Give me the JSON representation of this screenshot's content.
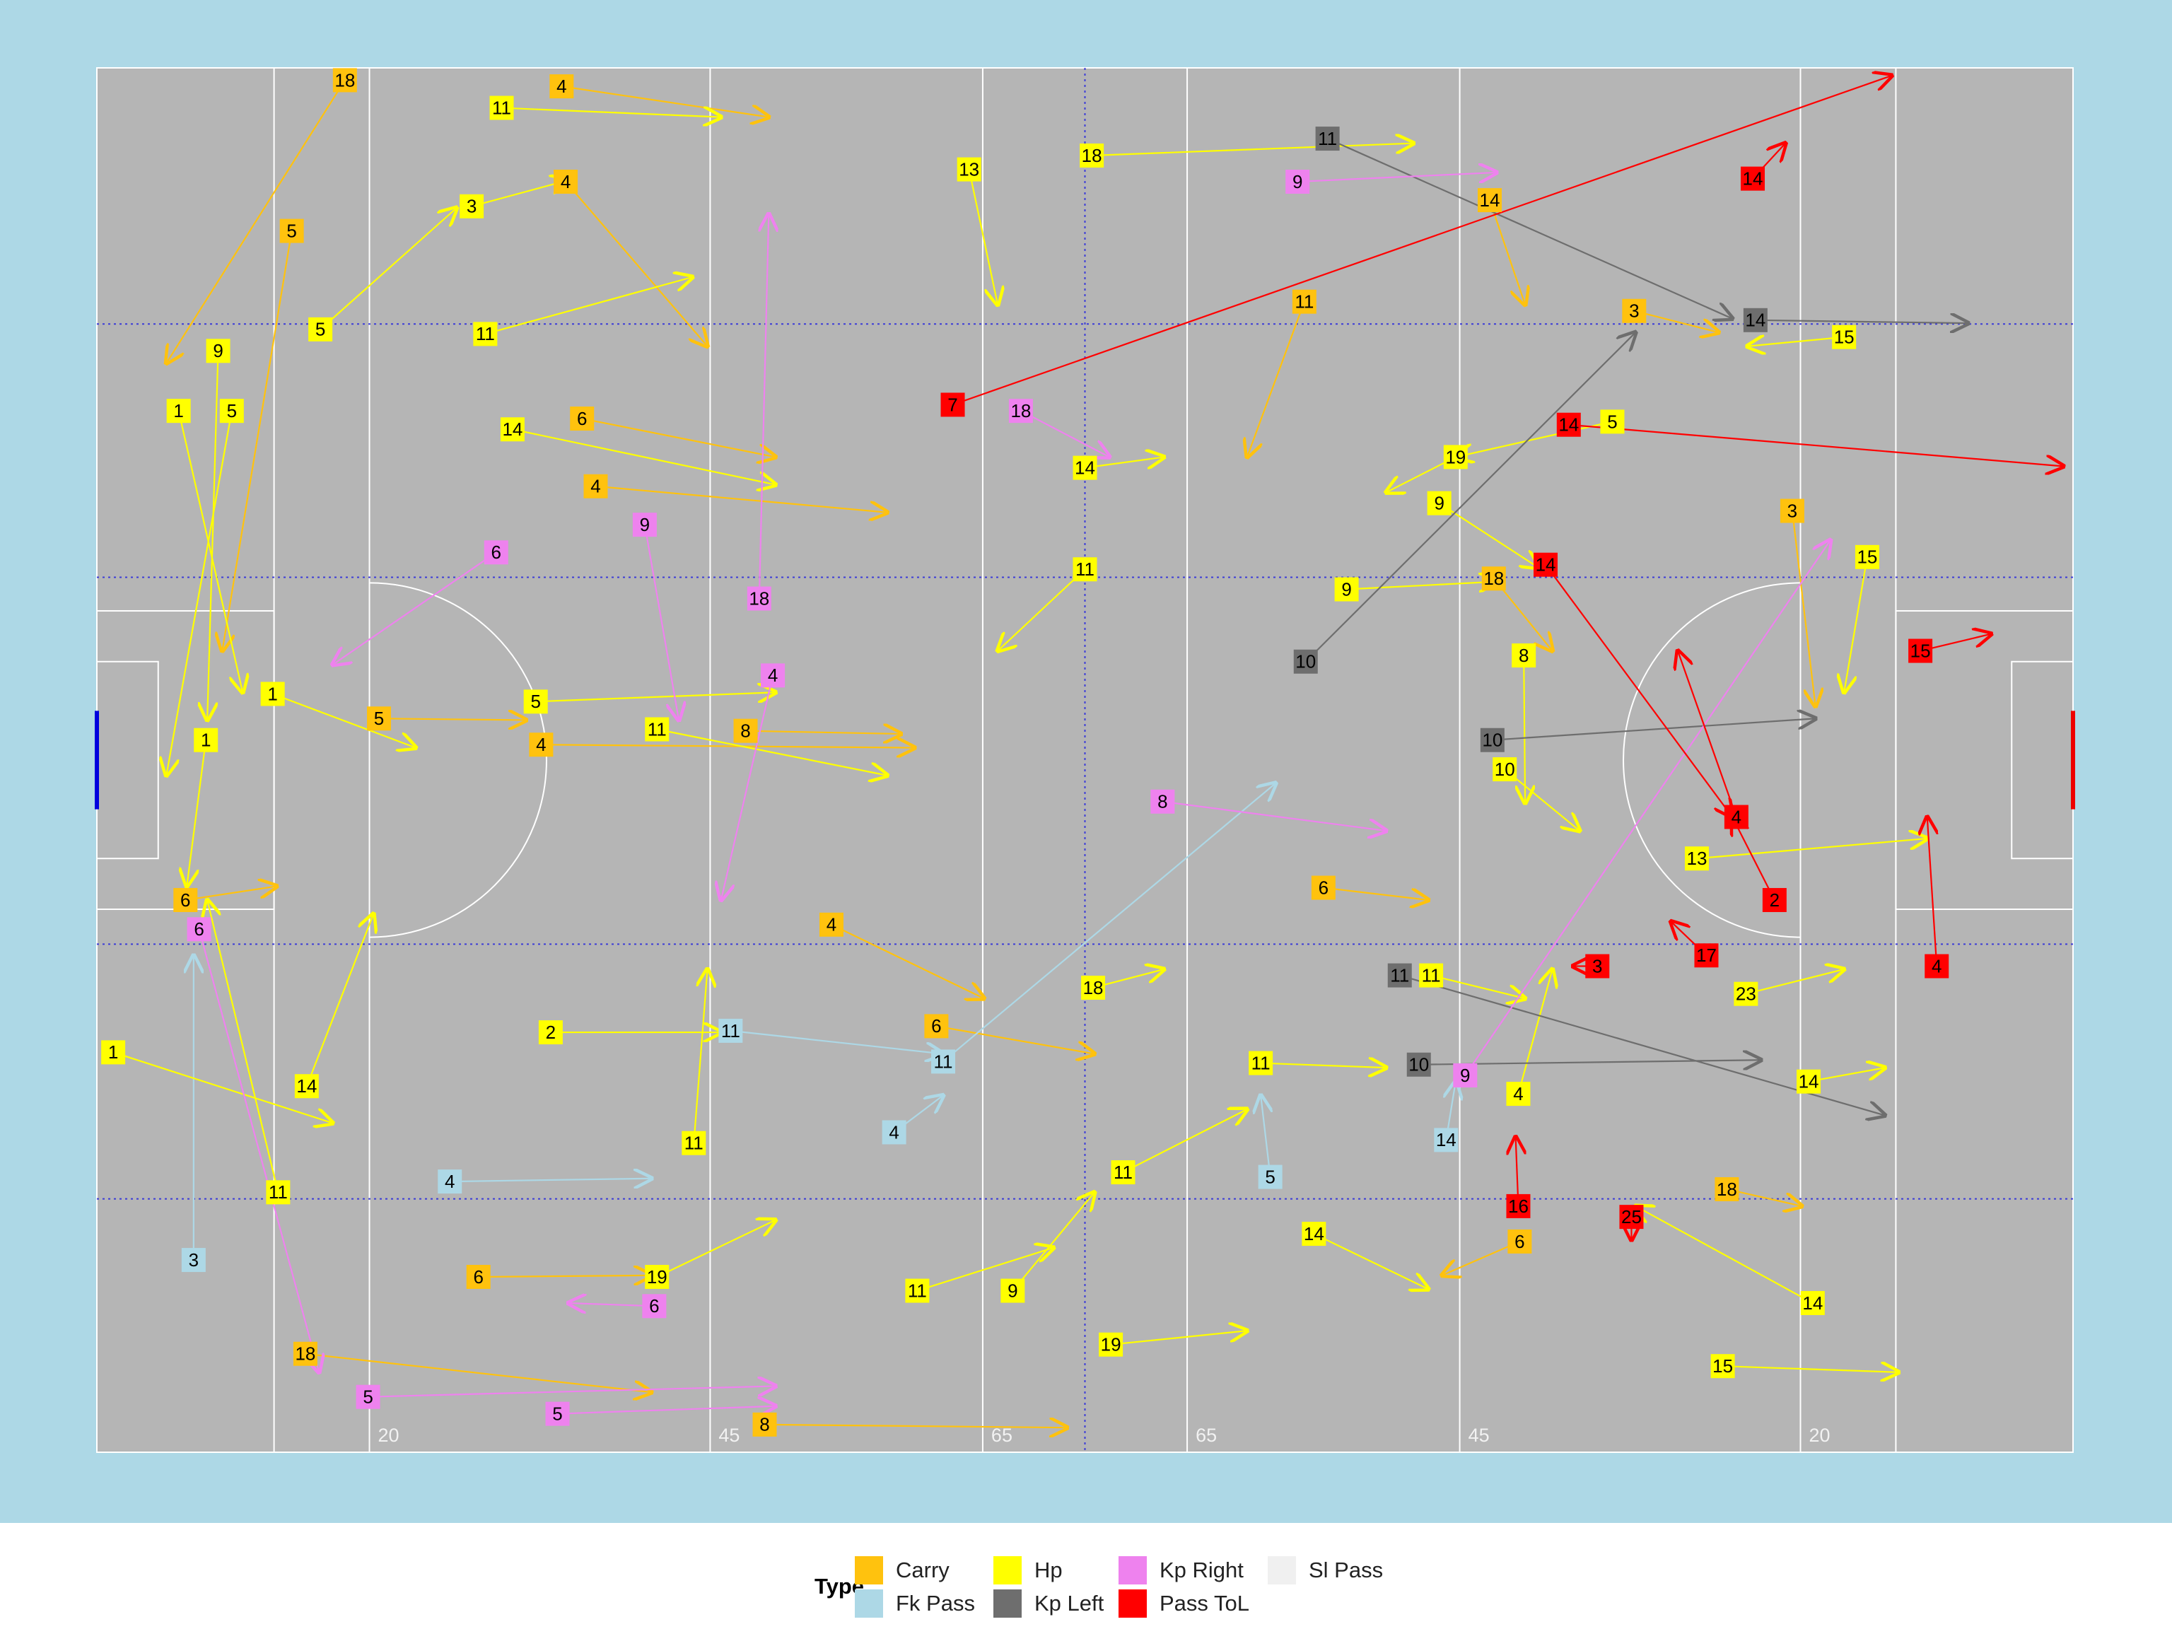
{
  "chart_data": {
    "type": "pitch_arrows",
    "xlim": [
      0,
      145
    ],
    "ylim": [
      0,
      90
    ],
    "xticks": [
      20,
      45,
      65,
      {
        "value": 80,
        "label": "65"
      },
      {
        "value": 100,
        "label": "45"
      },
      {
        "value": 125,
        "label": "20"
      }
    ],
    "legend": "bottom",
    "legend_title": "Type",
    "series": [
      {
        "name": "Carry",
        "color": "#ffc20e",
        "labels": [
          18,
          4,
          4,
          5,
          6,
          4,
          5,
          4,
          8,
          4,
          6,
          6,
          18,
          3,
          14,
          11,
          6,
          8,
          6,
          18,
          3,
          18,
          6
        ],
        "x": [
          18.2,
          34.1,
          34.4,
          14.3,
          35.6,
          36.6,
          20.7,
          32.6,
          47.6,
          53.9,
          61.6,
          90,
          102.5,
          112.8,
          102.2,
          88.6,
          104.4,
          49,
          28,
          15.3,
          124.4,
          119.6,
          6.5
        ],
        "y": [
          0.8,
          1.2,
          7.4,
          10.6,
          22.8,
          27.2,
          42.3,
          44,
          43.1,
          55.7,
          62.3,
          53.3,
          33.2,
          15.8,
          8.6,
          15.2,
          76.3,
          88.2,
          78.6,
          83.6,
          28.8,
          72.9,
          54.1
        ],
        "x_end": [
          5.1,
          49.3,
          44.8,
          9.2,
          49.8,
          58,
          31.5,
          60,
          59,
          65.1,
          73.2,
          97.7,
          106.8,
          119,
          104.8,
          84.4,
          98.7,
          71.2,
          40.7,
          40.7,
          126.1,
          125.1,
          13.2
        ],
        "y_end": [
          19.2,
          3.2,
          18.1,
          37.9,
          25.3,
          28.9,
          42.4,
          44.2,
          43.3,
          60.5,
          64.1,
          54.1,
          37.9,
          17.2,
          15.4,
          25.3,
          78.5,
          88.4,
          78.5,
          86.1,
          41.5,
          74,
          53.2
        ]
      },
      {
        "name": "Fk Pass",
        "color": "#add8e6",
        "labels": [
          11,
          11,
          4,
          3,
          14,
          4,
          5
        ],
        "x": [
          46.5,
          62.1,
          25.9,
          7.1,
          99,
          58.5,
          86.1
        ],
        "y": [
          62.6,
          64.6,
          72.4,
          77.5,
          69.7,
          69.2,
          72.1
        ],
        "x_end": [
          62.1,
          86.5,
          40.7,
          7.1,
          99.7,
          62.1,
          85.4
        ],
        "y_end": [
          64.1,
          46.5,
          72.2,
          57.7,
          65.9,
          66.8,
          66.8
        ]
      },
      {
        "name": "Hp",
        "color": "#ffff00",
        "labels": [
          11,
          3,
          5,
          11,
          9,
          1,
          5,
          14,
          1,
          5,
          11,
          1,
          1,
          14,
          11,
          2,
          11,
          19,
          11,
          9,
          19,
          11,
          14,
          15,
          14,
          14,
          23,
          13,
          15,
          15,
          5,
          19,
          9,
          9,
          8,
          10,
          11,
          4,
          11,
          18,
          11,
          14,
          13,
          18
        ],
        "x": [
          29.7,
          27.5,
          16.4,
          28.5,
          8.9,
          6,
          9.9,
          30.5,
          12.9,
          32.2,
          41.1,
          8,
          1.2,
          15.4,
          13.3,
          33.3,
          43.8,
          41.1,
          60.2,
          67.2,
          74.4,
          75.3,
          89.3,
          119.3,
          125.9,
          125.6,
          121,
          117.4,
          129.9,
          128.2,
          111.2,
          99.7,
          98.5,
          91.7,
          104.7,
          103.3,
          97.9,
          104.3,
          85.4,
          73.1,
          72.5,
          72.5,
          64,
          73
        ],
        "y": [
          2.6,
          9,
          17,
          17.3,
          18.4,
          22.3,
          22.3,
          23.5,
          40.7,
          41.2,
          43,
          43.7,
          64,
          66.2,
          73.1,
          62.7,
          69.9,
          78.6,
          79.5,
          79.5,
          83,
          71.8,
          75.8,
          84.4,
          80.3,
          65.9,
          60.2,
          51.4,
          31.8,
          17.5,
          23,
          25.3,
          28.3,
          33.9,
          38.2,
          45.6,
          59,
          66.7,
          64.7,
          59.8,
          32.6,
          26,
          6.6,
          5.7
        ],
        "x_end": [
          45.8,
          34.6,
          26.4,
          43.7,
          8.1,
          10.7,
          5.1,
          49.8,
          23.4,
          49.8,
          58,
          6.6,
          17.3,
          20.3,
          8.1,
          45.8,
          44.8,
          49.8,
          70.2,
          73.2,
          84.4,
          84.4,
          97.7,
          132.2,
          112.9,
          131.2,
          128.2,
          134.3,
          128.2,
          121.1,
          99.7,
          94.6,
          105.8,
          102.7,
          104.8,
          108.8,
          104.8,
          106.8,
          94.6,
          78.3,
          66.1,
          78.3,
          66.1,
          96.6
        ],
        "y_end": [
          3.2,
          7.3,
          9.1,
          13.6,
          42.4,
          40.6,
          46,
          27.1,
          44.2,
          40.6,
          46,
          53.2,
          68.6,
          55,
          54.1,
          62.7,
          58.6,
          74.9,
          76.7,
          73.1,
          82.1,
          67.7,
          79.4,
          84.8,
          74,
          65,
          58.6,
          50.1,
          40.6,
          18.1,
          25.3,
          27.6,
          32.5,
          33.4,
          47.8,
          49.6,
          60.5,
          58.6,
          65,
          58.6,
          37.9,
          25.3,
          15.4,
          4.9
        ]
      },
      {
        "name": "Kp Left",
        "color": "#6e6e6e",
        "labels": [
          11,
          14,
          10,
          10,
          10,
          11
        ],
        "x": [
          90.3,
          121.7,
          88.7,
          102.4,
          97,
          95.6
        ],
        "y": [
          4.6,
          16.4,
          38.6,
          43.7,
          64.8,
          59
        ],
        "x_end": [
          120,
          137.3,
          112.9,
          126.1,
          122.1,
          131.2
        ],
        "y_end": [
          16.3,
          16.6,
          17.2,
          42.3,
          64.5,
          68.1
        ]
      },
      {
        "name": "Kp Right",
        "color": "#ee82ee",
        "labels": [
          9,
          18,
          9,
          18,
          4,
          6,
          5,
          5,
          9,
          8,
          6,
          6
        ],
        "x": [
          88.1,
          67.8,
          40.2,
          48.6,
          49.6,
          7.5,
          19.9,
          33.8,
          100.4,
          78.2,
          40.9,
          29.3
        ],
        "y": [
          7.4,
          22.3,
          29.7,
          34.5,
          39.5,
          56,
          86.4,
          87.5,
          65.5,
          47.7,
          80.5,
          31.5
        ],
        "x_end": [
          102.7,
          74.3,
          42.7,
          49.3,
          45.8,
          16.3,
          49.8,
          49.8,
          127.2,
          94.6,
          34.6,
          17.3
        ],
        "y_end": [
          6.8,
          25.3,
          42.4,
          9.5,
          54.1,
          84.8,
          85.7,
          87,
          30.7,
          49.6,
          80.3,
          38.8
        ]
      },
      {
        "name": "Pass ToL",
        "color": "#ff0000",
        "labels": [
          7,
          14,
          14,
          14,
          15,
          4,
          2,
          17,
          4,
          3,
          16,
          25
        ],
        "x": [
          62.8,
          121.5,
          108,
          106.3,
          133.8,
          120.3,
          123.1,
          118.1,
          135,
          110.1,
          104.3,
          112.6
        ],
        "y": [
          21.9,
          7.2,
          23.2,
          32.3,
          37.9,
          48.7,
          54.1,
          57.7,
          58.4,
          58.4,
          74,
          74.7
        ],
        "x_end": [
          131.7,
          123.9,
          144.3,
          120,
          139,
          116,
          120,
          115.5,
          134.3,
          108.3,
          104.1,
          112.6
        ],
        "y_end": [
          0.5,
          4.9,
          25.9,
          48.7,
          36.8,
          37.9,
          48.7,
          55.5,
          48.7,
          58.4,
          69.5,
          76.2
        ]
      },
      {
        "name": "Sl Pass",
        "color": "#f0f0f0",
        "labels": [],
        "x": [],
        "y": [],
        "x_end": [],
        "y_end": []
      }
    ]
  }
}
